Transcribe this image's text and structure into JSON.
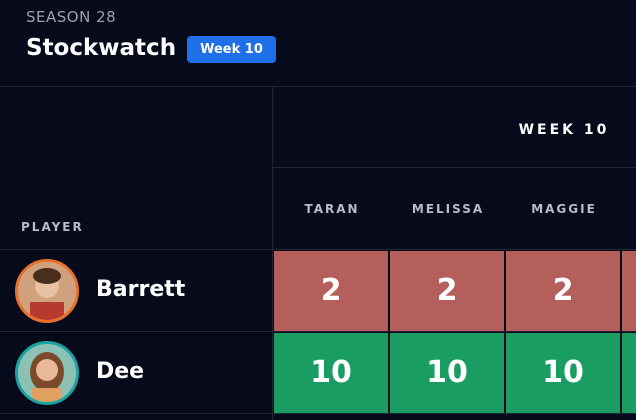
{
  "header": {
    "season": "SEASON 28",
    "title": "Stockwatch",
    "badge": "Week 10"
  },
  "table": {
    "player_header": "PLAYER",
    "group_header": "WEEK 10",
    "columns": [
      "TARAN",
      "MELISSA",
      "MAGGIE"
    ],
    "rows": [
      {
        "name": "Barrett",
        "values": [
          2,
          2,
          2
        ]
      },
      {
        "name": "Dee",
        "values": [
          10,
          10,
          10
        ]
      }
    ]
  }
}
